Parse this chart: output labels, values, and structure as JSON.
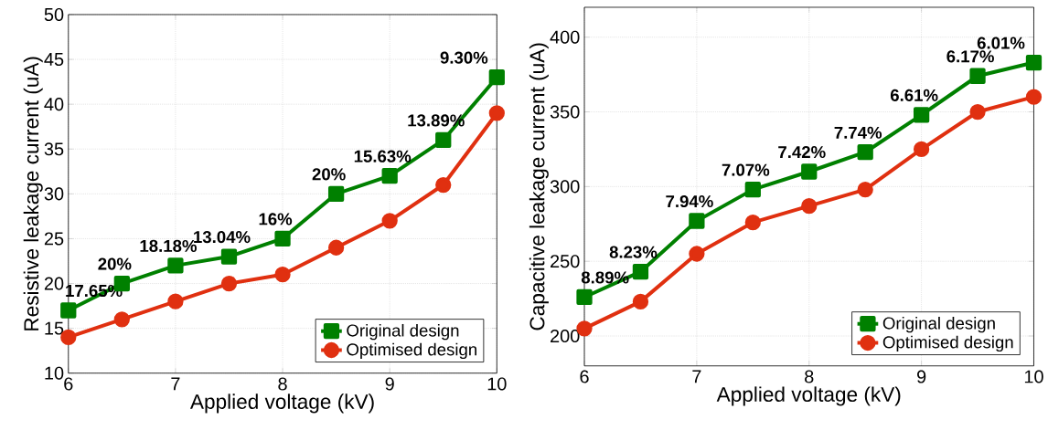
{
  "chart_data": [
    {
      "type": "line",
      "xlabel": "Applied voltage (kV)",
      "ylabel": "Resistive leakage current (uA)",
      "x": [
        6,
        6.5,
        7,
        7.5,
        8,
        8.5,
        9,
        9.5,
        10
      ],
      "xlim": [
        6,
        10
      ],
      "xticks": [
        6,
        7,
        8,
        9,
        10
      ],
      "ylim": [
        10,
        50
      ],
      "yticks": [
        10,
        15,
        20,
        25,
        30,
        35,
        40,
        45,
        50
      ],
      "grid": true,
      "legend": "bottom right",
      "series": [
        {
          "name": "Original design",
          "color": "#008000",
          "marker": "square",
          "values": [
            17,
            20,
            22,
            23,
            25,
            30,
            32,
            36,
            43
          ]
        },
        {
          "name": "Optimised design",
          "color": "#e03010",
          "marker": "circle",
          "values": [
            14,
            16,
            18,
            20,
            21,
            24,
            27,
            31,
            39
          ]
        }
      ],
      "annotations": [
        {
          "text": "17.65%",
          "x": 6,
          "y": 17
        },
        {
          "text": "20%",
          "x": 6.5,
          "y": 20
        },
        {
          "text": "18.18%",
          "x": 7,
          "y": 22
        },
        {
          "text": "13.04%",
          "x": 7.5,
          "y": 23
        },
        {
          "text": "16%",
          "x": 8,
          "y": 25
        },
        {
          "text": "20%",
          "x": 8.5,
          "y": 30
        },
        {
          "text": "15.63%",
          "x": 9,
          "y": 32
        },
        {
          "text": "13.89%",
          "x": 9.5,
          "y": 36
        },
        {
          "text": "9.30%",
          "x": 10,
          "y": 43
        }
      ]
    },
    {
      "type": "line",
      "xlabel": "Applied voltage (kV)",
      "ylabel": "Capacitive leakage current (uA)",
      "x": [
        6,
        6.5,
        7,
        7.5,
        8,
        8.5,
        9,
        9.5,
        10
      ],
      "xlim": [
        6,
        10
      ],
      "xticks": [
        6,
        7,
        8,
        9,
        10
      ],
      "ylim": [
        180,
        420
      ],
      "yticks": [
        200,
        250,
        300,
        350,
        400
      ],
      "grid": true,
      "legend": "bottom right",
      "series": [
        {
          "name": "Original design",
          "color": "#008000",
          "marker": "square",
          "values": [
            226,
            243,
            277,
            298,
            310,
            323,
            348,
            374,
            383
          ]
        },
        {
          "name": "Optimised design",
          "color": "#e03010",
          "marker": "circle",
          "values": [
            205,
            223,
            255,
            276,
            287,
            298,
            325,
            350,
            360
          ]
        }
      ],
      "annotations": [
        {
          "text": "8.89%",
          "x": 6,
          "y": 226
        },
        {
          "text": "8.23%",
          "x": 6.5,
          "y": 243
        },
        {
          "text": "7.94%",
          "x": 7,
          "y": 277
        },
        {
          "text": "7.07%",
          "x": 7.5,
          "y": 298
        },
        {
          "text": "7.42%",
          "x": 8,
          "y": 310
        },
        {
          "text": "7.74%",
          "x": 8.5,
          "y": 323
        },
        {
          "text": "6.61%",
          "x": 9,
          "y": 348
        },
        {
          "text": "6.17%",
          "x": 9.5,
          "y": 374
        },
        {
          "text": "6.01%",
          "x": 10,
          "y": 383
        }
      ]
    }
  ]
}
